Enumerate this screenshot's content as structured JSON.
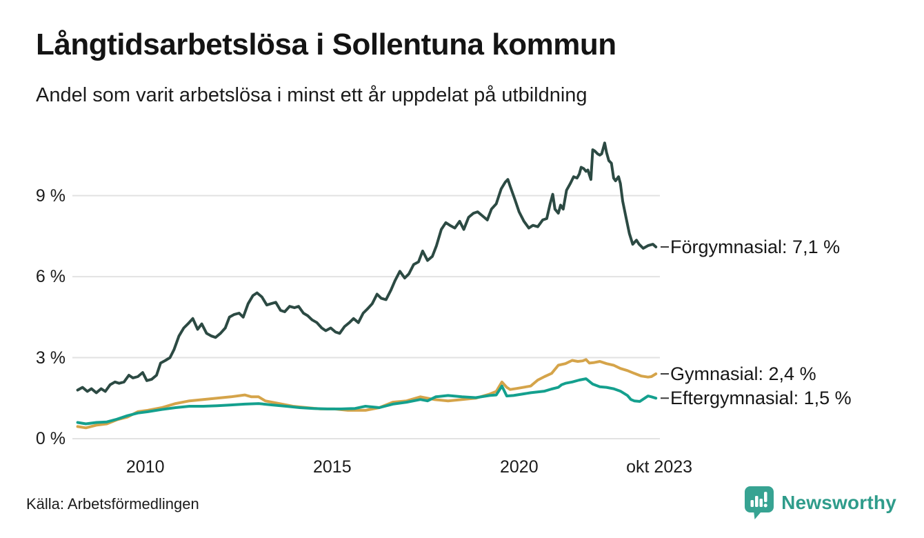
{
  "branding": {
    "logo_text": "Newsworthy",
    "logo_color": "#2f9c8b",
    "icon_color": "#37a392",
    "icon_name": "newsworthy-chart-bubble-icon"
  },
  "chart_data": {
    "type": "line",
    "title": "Långtidsarbetslösa i Sollentuna kommun",
    "subtitle": "Andel som varit arbetslösa i minst ett år uppdelat på utbildning",
    "source": "Källa: Arbetsförmedlingen",
    "xlabel": "",
    "ylabel": "",
    "grid": "horizontal",
    "gridline_color": "#e2e2e2",
    "legend_position": "end-labels-right",
    "x_domain": [
      2008.05,
      2023.73
    ],
    "y_domain": [
      0,
      11.2
    ],
    "y_ticks": [
      {
        "v": 0,
        "label": "0 %"
      },
      {
        "v": 3,
        "label": "3 %"
      },
      {
        "v": 6,
        "label": "6 %"
      },
      {
        "v": 9,
        "label": "9 %"
      }
    ],
    "x_ticks": [
      {
        "t": 2010,
        "label": "2010"
      },
      {
        "t": 2015,
        "label": "2015"
      },
      {
        "t": 2020,
        "label": "2020"
      },
      {
        "t": 2023.75,
        "label": "okt 2023"
      }
    ],
    "series": [
      {
        "id": "forgymnasial",
        "name": "Förgymnasial",
        "label": "Förgymnasial: 7,1 %",
        "current_value": "7,1 %",
        "color": "#2c4a43",
        "points": [
          [
            2008.19,
            1.8
          ],
          [
            2008.32,
            1.9
          ],
          [
            2008.45,
            1.75
          ],
          [
            2008.56,
            1.85
          ],
          [
            2008.69,
            1.7
          ],
          [
            2008.82,
            1.85
          ],
          [
            2008.93,
            1.75
          ],
          [
            2009.06,
            2.0
          ],
          [
            2009.19,
            2.1
          ],
          [
            2009.3,
            2.05
          ],
          [
            2009.43,
            2.1
          ],
          [
            2009.56,
            2.35
          ],
          [
            2009.67,
            2.25
          ],
          [
            2009.8,
            2.3
          ],
          [
            2009.93,
            2.45
          ],
          [
            2010.04,
            2.15
          ],
          [
            2010.17,
            2.2
          ],
          [
            2010.3,
            2.35
          ],
          [
            2010.41,
            2.8
          ],
          [
            2010.54,
            2.9
          ],
          [
            2010.66,
            3.0
          ],
          [
            2010.77,
            3.3
          ],
          [
            2010.9,
            3.8
          ],
          [
            2011.03,
            4.1
          ],
          [
            2011.14,
            4.25
          ],
          [
            2011.27,
            4.45
          ],
          [
            2011.4,
            4.05
          ],
          [
            2011.51,
            4.25
          ],
          [
            2011.64,
            3.9
          ],
          [
            2011.77,
            3.8
          ],
          [
            2011.88,
            3.75
          ],
          [
            2012.01,
            3.9
          ],
          [
            2012.14,
            4.1
          ],
          [
            2012.25,
            4.5
          ],
          [
            2012.38,
            4.6
          ],
          [
            2012.51,
            4.65
          ],
          [
            2012.62,
            4.5
          ],
          [
            2012.75,
            5.0
          ],
          [
            2012.88,
            5.3
          ],
          [
            2012.99,
            5.4
          ],
          [
            2013.12,
            5.25
          ],
          [
            2013.25,
            4.95
          ],
          [
            2013.36,
            5.0
          ],
          [
            2013.49,
            5.05
          ],
          [
            2013.62,
            4.75
          ],
          [
            2013.73,
            4.7
          ],
          [
            2013.86,
            4.9
          ],
          [
            2013.99,
            4.85
          ],
          [
            2014.1,
            4.9
          ],
          [
            2014.23,
            4.65
          ],
          [
            2014.35,
            4.55
          ],
          [
            2014.46,
            4.4
          ],
          [
            2014.59,
            4.3
          ],
          [
            2014.72,
            4.1
          ],
          [
            2014.83,
            4.0
          ],
          [
            2014.96,
            4.1
          ],
          [
            2015.09,
            3.95
          ],
          [
            2015.2,
            3.9
          ],
          [
            2015.33,
            4.15
          ],
          [
            2015.46,
            4.3
          ],
          [
            2015.57,
            4.45
          ],
          [
            2015.7,
            4.3
          ],
          [
            2015.83,
            4.65
          ],
          [
            2015.94,
            4.8
          ],
          [
            2016.07,
            5.0
          ],
          [
            2016.2,
            5.35
          ],
          [
            2016.31,
            5.2
          ],
          [
            2016.44,
            5.15
          ],
          [
            2016.57,
            5.5
          ],
          [
            2016.68,
            5.85
          ],
          [
            2016.81,
            6.2
          ],
          [
            2016.94,
            5.95
          ],
          [
            2017.05,
            6.1
          ],
          [
            2017.18,
            6.45
          ],
          [
            2017.31,
            6.55
          ],
          [
            2017.42,
            6.95
          ],
          [
            2017.55,
            6.6
          ],
          [
            2017.68,
            6.75
          ],
          [
            2017.79,
            7.15
          ],
          [
            2017.92,
            7.75
          ],
          [
            2018.04,
            8.0
          ],
          [
            2018.15,
            7.9
          ],
          [
            2018.28,
            7.8
          ],
          [
            2018.41,
            8.05
          ],
          [
            2018.52,
            7.75
          ],
          [
            2018.65,
            8.2
          ],
          [
            2018.78,
            8.35
          ],
          [
            2018.89,
            8.4
          ],
          [
            2019.02,
            8.25
          ],
          [
            2019.15,
            8.1
          ],
          [
            2019.26,
            8.5
          ],
          [
            2019.39,
            8.7
          ],
          [
            2019.52,
            9.25
          ],
          [
            2019.63,
            9.5
          ],
          [
            2019.7,
            9.6
          ],
          [
            2019.76,
            9.35
          ],
          [
            2019.89,
            8.85
          ],
          [
            2020.0,
            8.4
          ],
          [
            2020.13,
            8.05
          ],
          [
            2020.26,
            7.8
          ],
          [
            2020.37,
            7.9
          ],
          [
            2020.5,
            7.85
          ],
          [
            2020.63,
            8.1
          ],
          [
            2020.74,
            8.15
          ],
          [
            2020.83,
            8.7
          ],
          [
            2020.9,
            9.05
          ],
          [
            2020.96,
            8.5
          ],
          [
            2021.05,
            8.35
          ],
          [
            2021.11,
            8.65
          ],
          [
            2021.18,
            8.5
          ],
          [
            2021.27,
            9.2
          ],
          [
            2021.37,
            9.45
          ],
          [
            2021.46,
            9.7
          ],
          [
            2021.55,
            9.65
          ],
          [
            2021.61,
            9.8
          ],
          [
            2021.66,
            10.05
          ],
          [
            2021.73,
            10.0
          ],
          [
            2021.79,
            9.9
          ],
          [
            2021.84,
            9.95
          ],
          [
            2021.92,
            9.6
          ],
          [
            2021.97,
            10.7
          ],
          [
            2022.03,
            10.65
          ],
          [
            2022.1,
            10.55
          ],
          [
            2022.16,
            10.5
          ],
          [
            2022.21,
            10.55
          ],
          [
            2022.29,
            10.95
          ],
          [
            2022.34,
            10.6
          ],
          [
            2022.4,
            10.3
          ],
          [
            2022.47,
            10.2
          ],
          [
            2022.53,
            9.65
          ],
          [
            2022.58,
            9.55
          ],
          [
            2022.66,
            9.7
          ],
          [
            2022.71,
            9.45
          ],
          [
            2022.77,
            8.8
          ],
          [
            2022.86,
            8.2
          ],
          [
            2022.95,
            7.6
          ],
          [
            2023.04,
            7.2
          ],
          [
            2023.14,
            7.35
          ],
          [
            2023.21,
            7.2
          ],
          [
            2023.32,
            7.05
          ],
          [
            2023.45,
            7.15
          ],
          [
            2023.58,
            7.2
          ],
          [
            2023.66,
            7.1
          ]
        ]
      },
      {
        "id": "gymnasial",
        "name": "Gymnasial",
        "label": "Gymnasial: 2,4 %",
        "current_value": "2,4 %",
        "color": "#d5a44a",
        "points": [
          [
            2008.19,
            0.45
          ],
          [
            2008.41,
            0.4
          ],
          [
            2008.69,
            0.5
          ],
          [
            2008.97,
            0.55
          ],
          [
            2009.24,
            0.7
          ],
          [
            2009.52,
            0.8
          ],
          [
            2009.8,
            1.0
          ],
          [
            2010.07,
            1.05
          ],
          [
            2010.44,
            1.15
          ],
          [
            2010.81,
            1.3
          ],
          [
            2011.18,
            1.4
          ],
          [
            2011.55,
            1.45
          ],
          [
            2011.92,
            1.5
          ],
          [
            2012.29,
            1.55
          ],
          [
            2012.66,
            1.62
          ],
          [
            2012.84,
            1.55
          ],
          [
            2013.03,
            1.55
          ],
          [
            2013.21,
            1.4
          ],
          [
            2013.58,
            1.3
          ],
          [
            2013.95,
            1.2
          ],
          [
            2014.32,
            1.15
          ],
          [
            2014.69,
            1.1
          ],
          [
            2015.06,
            1.1
          ],
          [
            2015.42,
            1.05
          ],
          [
            2015.89,
            1.05
          ],
          [
            2016.26,
            1.15
          ],
          [
            2016.62,
            1.35
          ],
          [
            2016.99,
            1.4
          ],
          [
            2017.36,
            1.55
          ],
          [
            2017.55,
            1.5
          ],
          [
            2017.73,
            1.45
          ],
          [
            2018.1,
            1.4
          ],
          [
            2018.47,
            1.45
          ],
          [
            2018.84,
            1.5
          ],
          [
            2019.21,
            1.65
          ],
          [
            2019.39,
            1.75
          ],
          [
            2019.54,
            2.1
          ],
          [
            2019.67,
            1.9
          ],
          [
            2019.76,
            1.82
          ],
          [
            2019.94,
            1.86
          ],
          [
            2020.31,
            1.95
          ],
          [
            2020.5,
            2.17
          ],
          [
            2020.68,
            2.3
          ],
          [
            2020.87,
            2.42
          ],
          [
            2021.05,
            2.72
          ],
          [
            2021.24,
            2.78
          ],
          [
            2021.42,
            2.9
          ],
          [
            2021.57,
            2.86
          ],
          [
            2021.7,
            2.88
          ],
          [
            2021.79,
            2.93
          ],
          [
            2021.88,
            2.8
          ],
          [
            2022.01,
            2.82
          ],
          [
            2022.16,
            2.86
          ],
          [
            2022.34,
            2.78
          ],
          [
            2022.53,
            2.72
          ],
          [
            2022.71,
            2.6
          ],
          [
            2022.9,
            2.52
          ],
          [
            2023.08,
            2.42
          ],
          [
            2023.27,
            2.32
          ],
          [
            2023.45,
            2.28
          ],
          [
            2023.54,
            2.3
          ],
          [
            2023.66,
            2.4
          ]
        ]
      },
      {
        "id": "eftergymnasial",
        "name": "Eftergymnasial",
        "label": "Eftergymnasial: 1,5 %",
        "current_value": "1,5 %",
        "color": "#14a08e",
        "points": [
          [
            2008.19,
            0.6
          ],
          [
            2008.41,
            0.55
          ],
          [
            2008.69,
            0.6
          ],
          [
            2008.97,
            0.62
          ],
          [
            2009.24,
            0.72
          ],
          [
            2009.52,
            0.85
          ],
          [
            2009.8,
            0.95
          ],
          [
            2010.07,
            1.0
          ],
          [
            2010.44,
            1.08
          ],
          [
            2010.81,
            1.15
          ],
          [
            2011.18,
            1.2
          ],
          [
            2011.55,
            1.2
          ],
          [
            2011.92,
            1.22
          ],
          [
            2012.29,
            1.25
          ],
          [
            2012.66,
            1.28
          ],
          [
            2013.03,
            1.3
          ],
          [
            2013.4,
            1.25
          ],
          [
            2013.77,
            1.2
          ],
          [
            2014.13,
            1.15
          ],
          [
            2014.5,
            1.12
          ],
          [
            2014.87,
            1.1
          ],
          [
            2015.24,
            1.1
          ],
          [
            2015.61,
            1.12
          ],
          [
            2015.89,
            1.2
          ],
          [
            2016.26,
            1.15
          ],
          [
            2016.62,
            1.28
          ],
          [
            2016.99,
            1.35
          ],
          [
            2017.36,
            1.45
          ],
          [
            2017.55,
            1.4
          ],
          [
            2017.77,
            1.55
          ],
          [
            2018.1,
            1.6
          ],
          [
            2018.47,
            1.55
          ],
          [
            2018.84,
            1.52
          ],
          [
            2019.21,
            1.6
          ],
          [
            2019.39,
            1.62
          ],
          [
            2019.54,
            1.95
          ],
          [
            2019.67,
            1.58
          ],
          [
            2019.85,
            1.6
          ],
          [
            2020.31,
            1.7
          ],
          [
            2020.68,
            1.76
          ],
          [
            2020.87,
            1.84
          ],
          [
            2021.05,
            1.9
          ],
          [
            2021.14,
            2.0
          ],
          [
            2021.24,
            2.05
          ],
          [
            2021.42,
            2.1
          ],
          [
            2021.61,
            2.17
          ],
          [
            2021.79,
            2.22
          ],
          [
            2021.97,
            2.02
          ],
          [
            2022.16,
            1.92
          ],
          [
            2022.34,
            1.9
          ],
          [
            2022.53,
            1.85
          ],
          [
            2022.71,
            1.76
          ],
          [
            2022.9,
            1.6
          ],
          [
            2022.99,
            1.45
          ],
          [
            2023.08,
            1.4
          ],
          [
            2023.23,
            1.38
          ],
          [
            2023.36,
            1.5
          ],
          [
            2023.45,
            1.58
          ],
          [
            2023.54,
            1.55
          ],
          [
            2023.66,
            1.5
          ]
        ]
      }
    ]
  }
}
